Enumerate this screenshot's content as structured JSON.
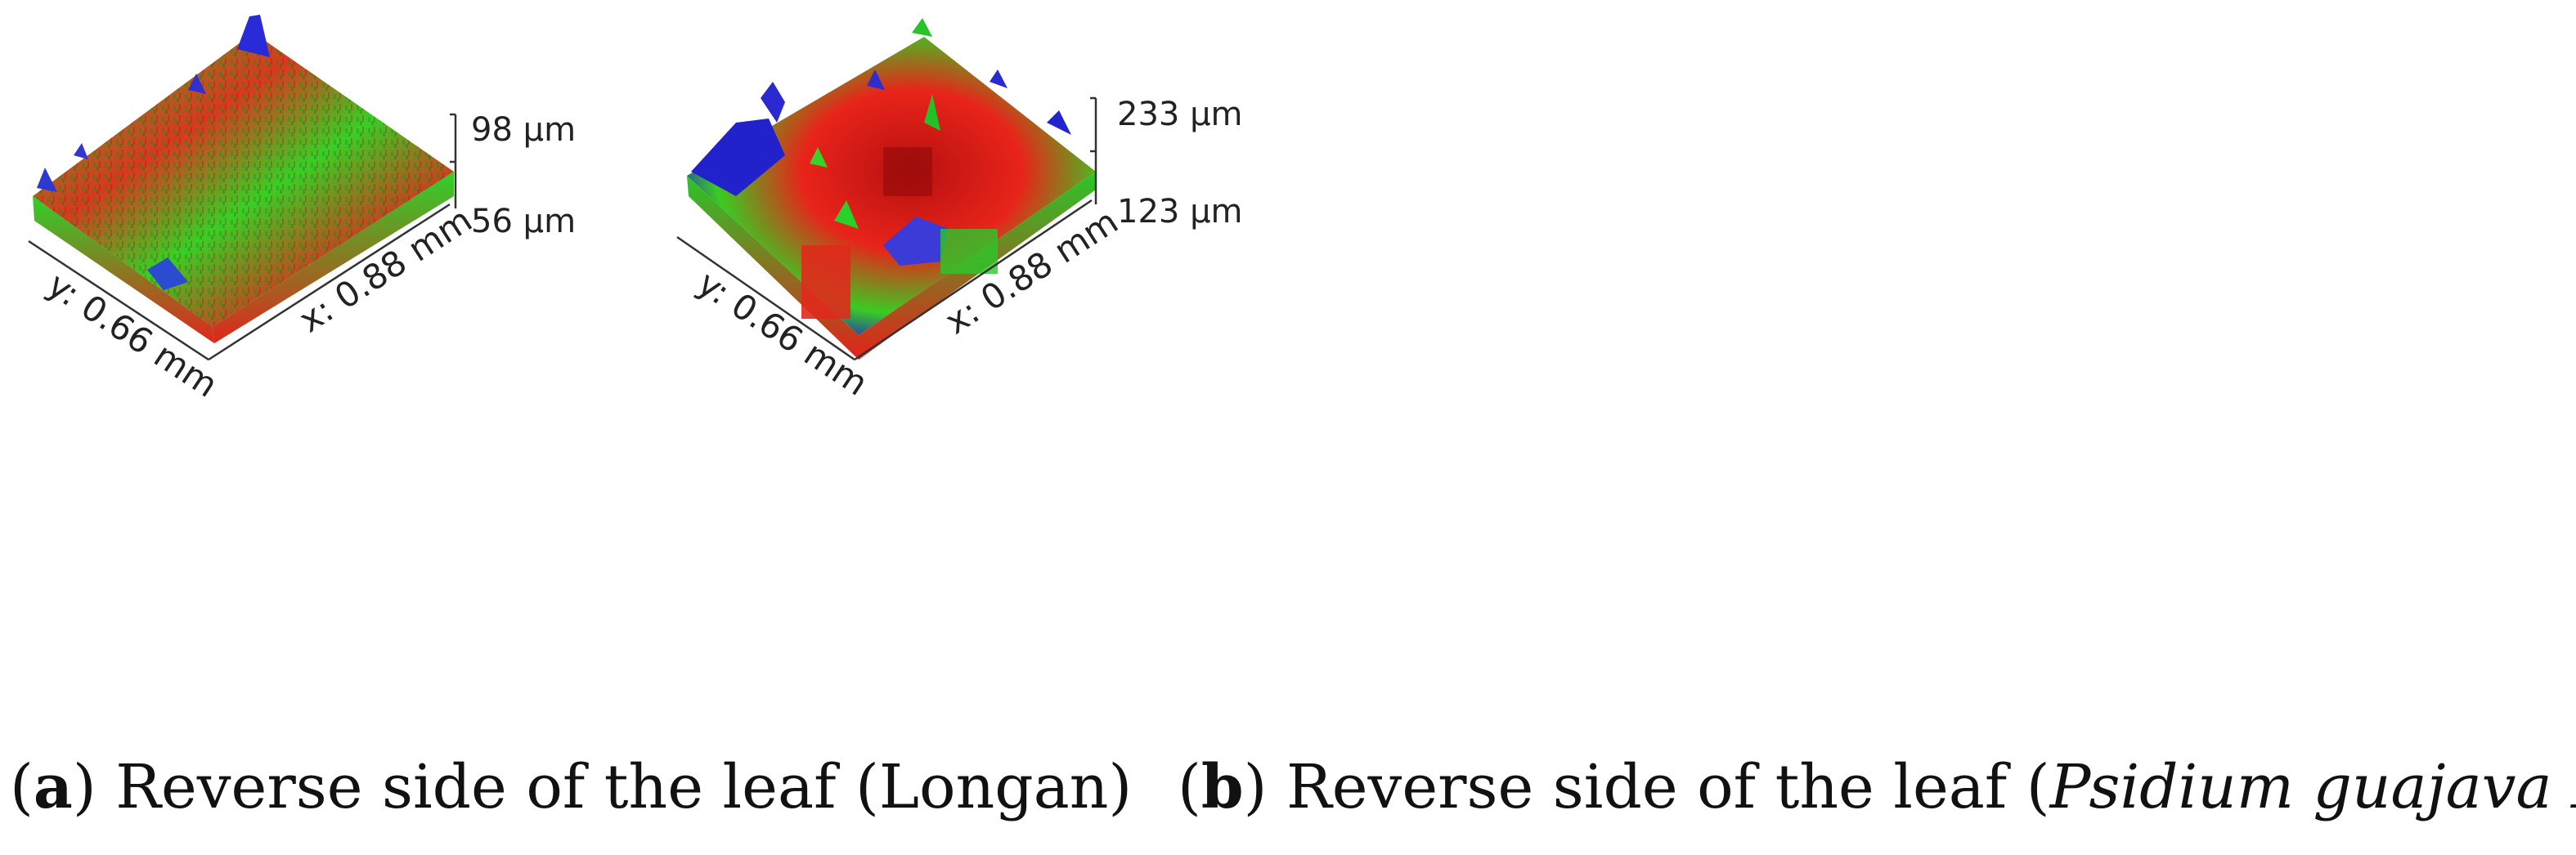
{
  "panels": [
    {
      "id": "a",
      "z_max": "98 µm",
      "z_min": "56 µm",
      "x_label": "x: 0.88 mm",
      "y_label": "y: 0.66 mm",
      "caption": {
        "letter": "a",
        "text_before": "Reverse side of the leaf (",
        "italic": "",
        "text_after": "Longan)"
      }
    },
    {
      "id": "b",
      "z_max": "233 µm",
      "z_min": "123 µm",
      "x_label": "x: 0.88 mm",
      "y_label": "y: 0.66 mm",
      "caption": {
        "letter": "b",
        "text_before": "Reverse side of the leaf (",
        "italic": "Psidium guajava L.",
        "text_after": ")"
      }
    }
  ],
  "colors": {
    "low": "#e8201a",
    "mid": "#22d41c",
    "high": "#1a1ad6"
  }
}
